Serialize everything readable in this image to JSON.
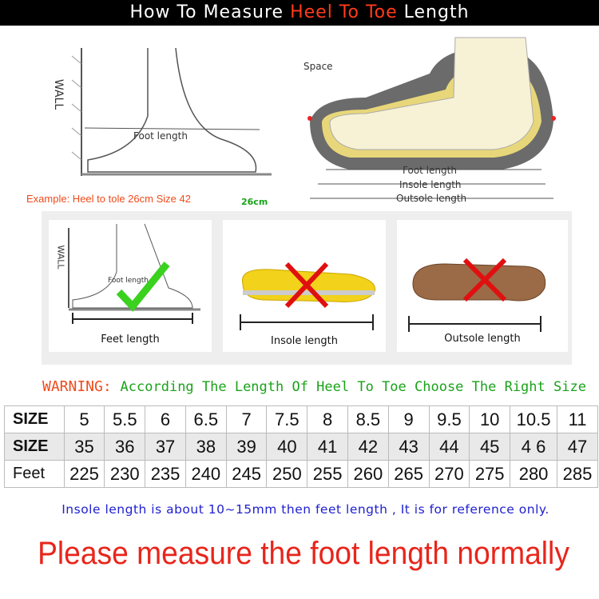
{
  "title": {
    "pre": "How To Measure ",
    "highlight": "Heel To Toe",
    "post": " Length"
  },
  "top_left": {
    "wall": "WALL",
    "foot_length": "Foot length",
    "example": "Example: Heel to tole 26cm Size 42",
    "cm": "26cm"
  },
  "top_right": {
    "space": "Space",
    "foot_length": "Foot length",
    "insole_length": "Insole length",
    "outsole_length": "Outsole length"
  },
  "cards": [
    {
      "label": "Feet length",
      "wall": "WALL",
      "foot_length": "Foot length",
      "mark": "check"
    },
    {
      "label": "Insole length",
      "mark": "cross"
    },
    {
      "label": "Outsole length",
      "mark": "cross"
    }
  ],
  "warning": {
    "label": "WARNING:",
    "text": "According The Length Of Heel To Toe Choose The Right Size"
  },
  "table": {
    "rows": [
      {
        "header": "SIZE",
        "cells": [
          "5",
          "5.5",
          "6",
          "6.5",
          "7",
          "7.5",
          "8",
          "8.5",
          "9",
          "9.5",
          "10",
          "10.5",
          "11"
        ]
      },
      {
        "header": "SIZE",
        "cells": [
          "35",
          "36",
          "37",
          "38",
          "39",
          "40",
          "41",
          "42",
          "43",
          "44",
          "45",
          "4 6",
          "47"
        ]
      },
      {
        "header": "Feet",
        "cells": [
          "225",
          "230",
          "235",
          "240",
          "245",
          "250",
          "255",
          "260",
          "265",
          "270",
          "275",
          "280",
          "285"
        ]
      }
    ]
  },
  "note": "Insole length is about 10~15mm then feet length , It is for reference only.",
  "footer": "Please measure the foot length normally",
  "colors": {
    "accent_red": "#e8251b",
    "warning_orange": "#f04a1a",
    "warning_green": "#1aa21a",
    "note_blue": "#2020d0",
    "check_green": "#3ad11f"
  }
}
